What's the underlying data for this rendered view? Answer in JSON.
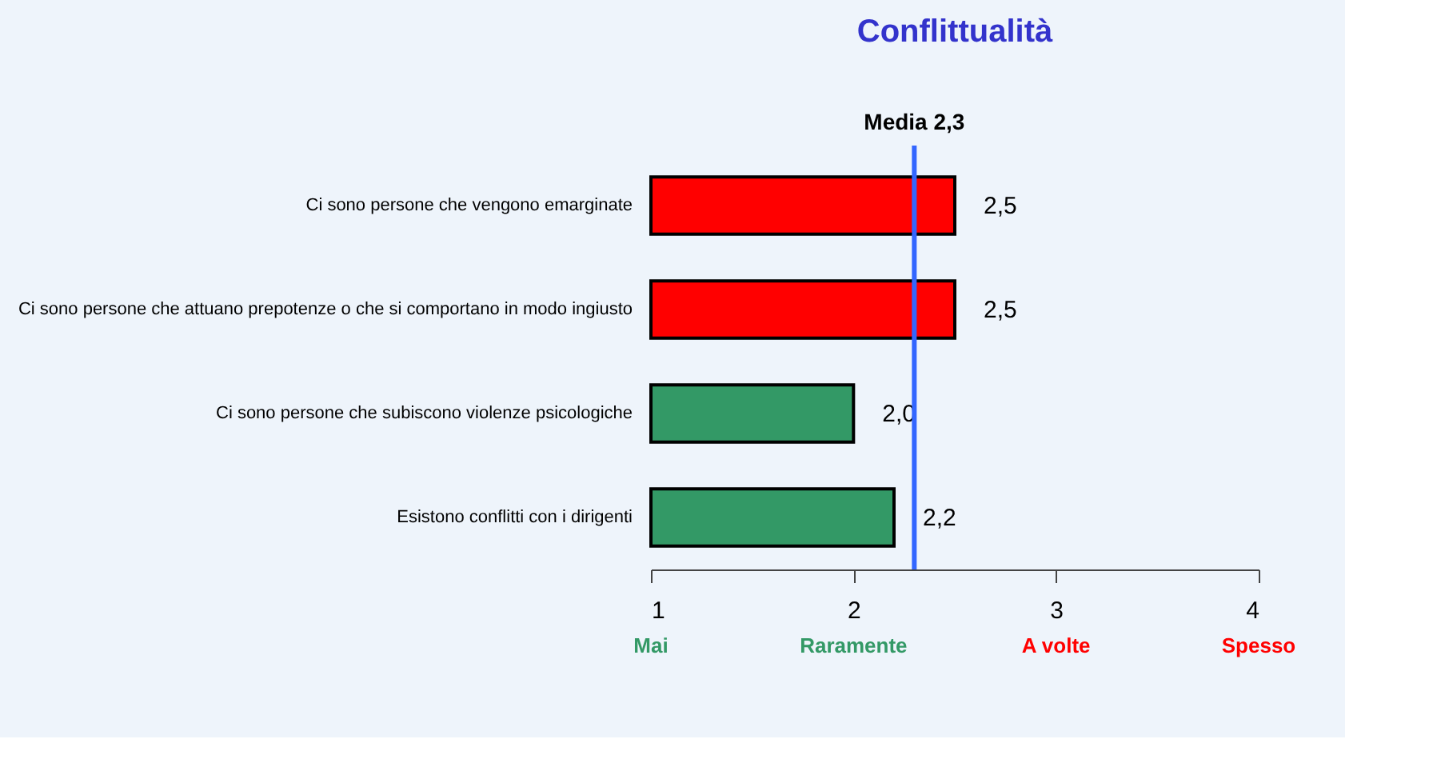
{
  "chart_data": {
    "type": "bar",
    "orientation": "horizontal",
    "title": "Conflittualità",
    "categories": [
      "Ci sono persone che vengono emarginate",
      "Ci sono persone che attuano prepotenze o che si comportano in modo ingiusto",
      "Ci sono persone che subiscono violenze psicologiche",
      "Esistono conflitti con i dirigenti"
    ],
    "values": [
      2.5,
      2.5,
      2.0,
      2.2
    ],
    "colors": [
      "#ff0000",
      "#ff0000",
      "#339966",
      "#339966"
    ],
    "value_labels": [
      "2,5",
      "2,5",
      "2,0",
      "2,2"
    ],
    "xlim": [
      1,
      4
    ],
    "xticks": [
      1,
      2,
      3,
      4
    ],
    "grid": false,
    "ref_lines": [
      {
        "axis": "x",
        "value": 2.3,
        "label": "Media 2,3",
        "color": "#3366ff"
      }
    ],
    "annotations": [
      "Mai",
      "Raramente",
      "A volte",
      "Spesso"
    ]
  }
}
